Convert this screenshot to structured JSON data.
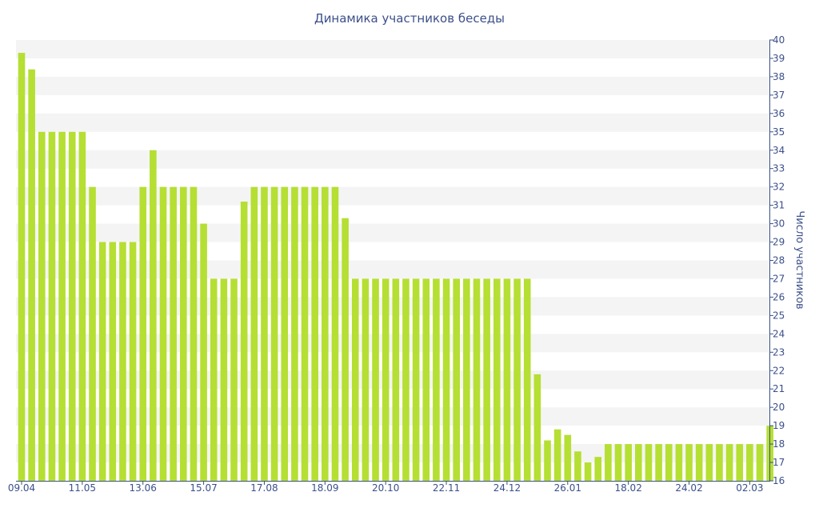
{
  "chart_data": {
    "type": "bar",
    "title": "Динамика участников беседы",
    "xlabel": "",
    "ylabel": "Число участников",
    "ylim": [
      16,
      40
    ],
    "yticks": [
      16,
      17,
      18,
      19,
      20,
      21,
      22,
      23,
      24,
      25,
      26,
      27,
      28,
      29,
      30,
      31,
      32,
      33,
      34,
      35,
      36,
      37,
      38,
      39,
      40
    ],
    "xtick_labels": [
      "09.04",
      "11.05",
      "13.06",
      "15.07",
      "17.08",
      "18.09",
      "20.10",
      "22.11",
      "24.12",
      "26.01",
      "18.02",
      "24.02",
      "02.03"
    ],
    "xtick_positions": [
      0,
      6,
      12,
      18,
      24,
      30,
      36,
      42,
      48,
      54,
      60,
      66,
      72
    ],
    "grid": "horizontal-bands",
    "legend": "none",
    "colors": {
      "bar": "#b5df33",
      "axis": "#3b4f8a",
      "band": "#f4f4f4"
    },
    "values": [
      39.3,
      38.4,
      35,
      35,
      35,
      35,
      35,
      32,
      29,
      29,
      29,
      29,
      32,
      34,
      32,
      32,
      32,
      32,
      30,
      27,
      27,
      27,
      31.2,
      32,
      32,
      32,
      32,
      32,
      32,
      32,
      32,
      32,
      30.3,
      27,
      27,
      27,
      27,
      27,
      27,
      27,
      27,
      27,
      27,
      27,
      27,
      27,
      27,
      27,
      27,
      27,
      27,
      21.8,
      18.2,
      18.8,
      18.5,
      17.6,
      17,
      17.3,
      18,
      18,
      18,
      18,
      18,
      18,
      18,
      18,
      18,
      18,
      18,
      18,
      18,
      18,
      18,
      18,
      19
    ]
  }
}
